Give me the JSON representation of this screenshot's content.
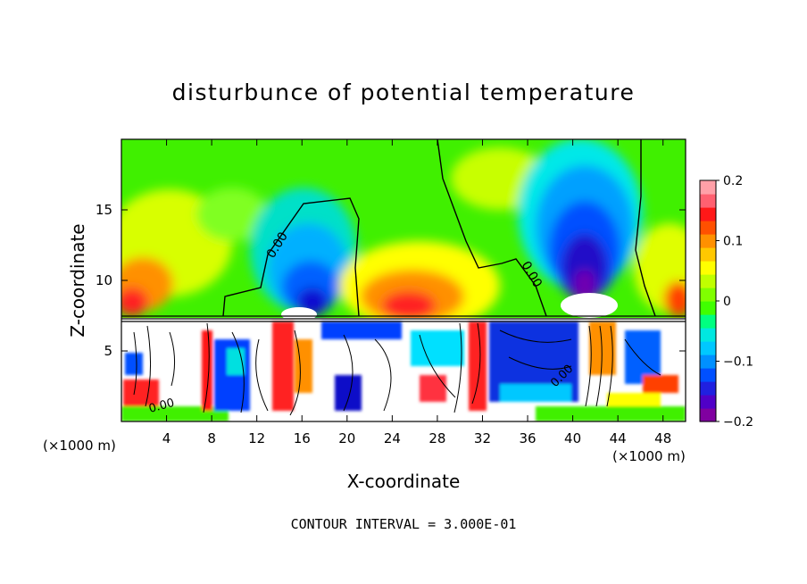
{
  "chart_data": {
    "type": "heatmap",
    "title": "disturbunce of potential temperature",
    "xlabel": "X-coordinate",
    "ylabel": "Z-coordinate",
    "x_unit_left": "(×1000 m)",
    "x_unit_right": "(×1000 m)",
    "footer": "CONTOUR INTERVAL = 3.000E-01",
    "xlim": [
      0,
      50
    ],
    "ylim": [
      0,
      20
    ],
    "x_ticks": [
      4,
      8,
      12,
      16,
      20,
      24,
      28,
      32,
      36,
      40,
      44,
      48
    ],
    "x_tick_labels": [
      "4",
      "8",
      "12",
      "16",
      "20",
      "24",
      "28",
      "32",
      "36",
      "40",
      "44",
      "48"
    ],
    "y_ticks": [
      5,
      10,
      15
    ],
    "y_tick_labels": [
      "5",
      "10",
      "15"
    ],
    "contour_labels": [
      "0.00",
      "0.00",
      "0.00",
      "0.00"
    ],
    "colorbar": {
      "min": -0.2,
      "max": 0.2,
      "ticks": [
        0.2,
        0.1,
        0,
        -0.1,
        -0.2
      ],
      "tick_labels": [
        "0.2",
        "0.1",
        "0",
        "−0.1",
        "−0.2"
      ],
      "colors": [
        "#8000a0",
        "#5000c8",
        "#2020e0",
        "#0050ff",
        "#0090ff",
        "#00c8ff",
        "#00e8e0",
        "#00ff80",
        "#40ff00",
        "#80ff00",
        "#c0ff00",
        "#ffff00",
        "#ffc800",
        "#ff9000",
        "#ff5000",
        "#ff1818",
        "#ff6070",
        "#ffa0a8"
      ]
    },
    "layers": [
      {
        "name": "upper layer",
        "z_range": [
          7.3,
          20
        ]
      },
      {
        "name": "lower layer",
        "z_range": [
          0,
          7.3
        ]
      }
    ]
  }
}
